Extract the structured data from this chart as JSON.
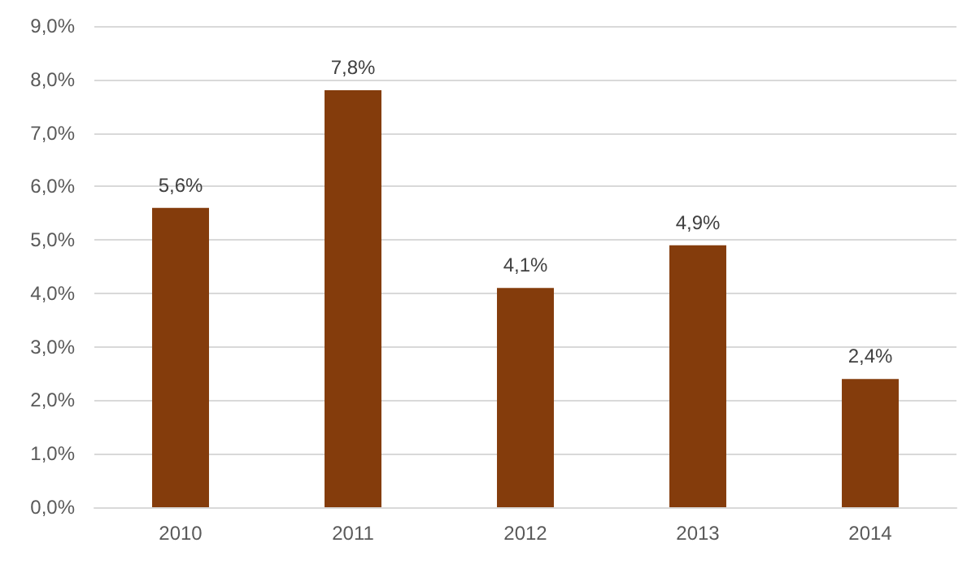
{
  "chart_data": {
    "type": "bar",
    "categories": [
      "2010",
      "2011",
      "2012",
      "2013",
      "2014"
    ],
    "values": [
      5.6,
      7.8,
      4.1,
      4.9,
      2.4
    ],
    "value_labels": [
      "5,6%",
      "7,8%",
      "4,1%",
      "4,9%",
      "2,4%"
    ],
    "color": "#843c0c",
    "ylim": [
      0,
      9
    ],
    "yticks": [
      {
        "value": 0,
        "label": "0,0%"
      },
      {
        "value": 1,
        "label": "1,0%"
      },
      {
        "value": 2,
        "label": "2,0%"
      },
      {
        "value": 3,
        "label": "3,0%"
      },
      {
        "value": 4,
        "label": "4,0%"
      },
      {
        "value": 5,
        "label": "5,0%"
      },
      {
        "value": 6,
        "label": "6,0%"
      },
      {
        "value": 7,
        "label": "7,0%"
      },
      {
        "value": 8,
        "label": "8,0%"
      },
      {
        "value": 9,
        "label": "9,0%"
      }
    ],
    "grid": "y"
  }
}
